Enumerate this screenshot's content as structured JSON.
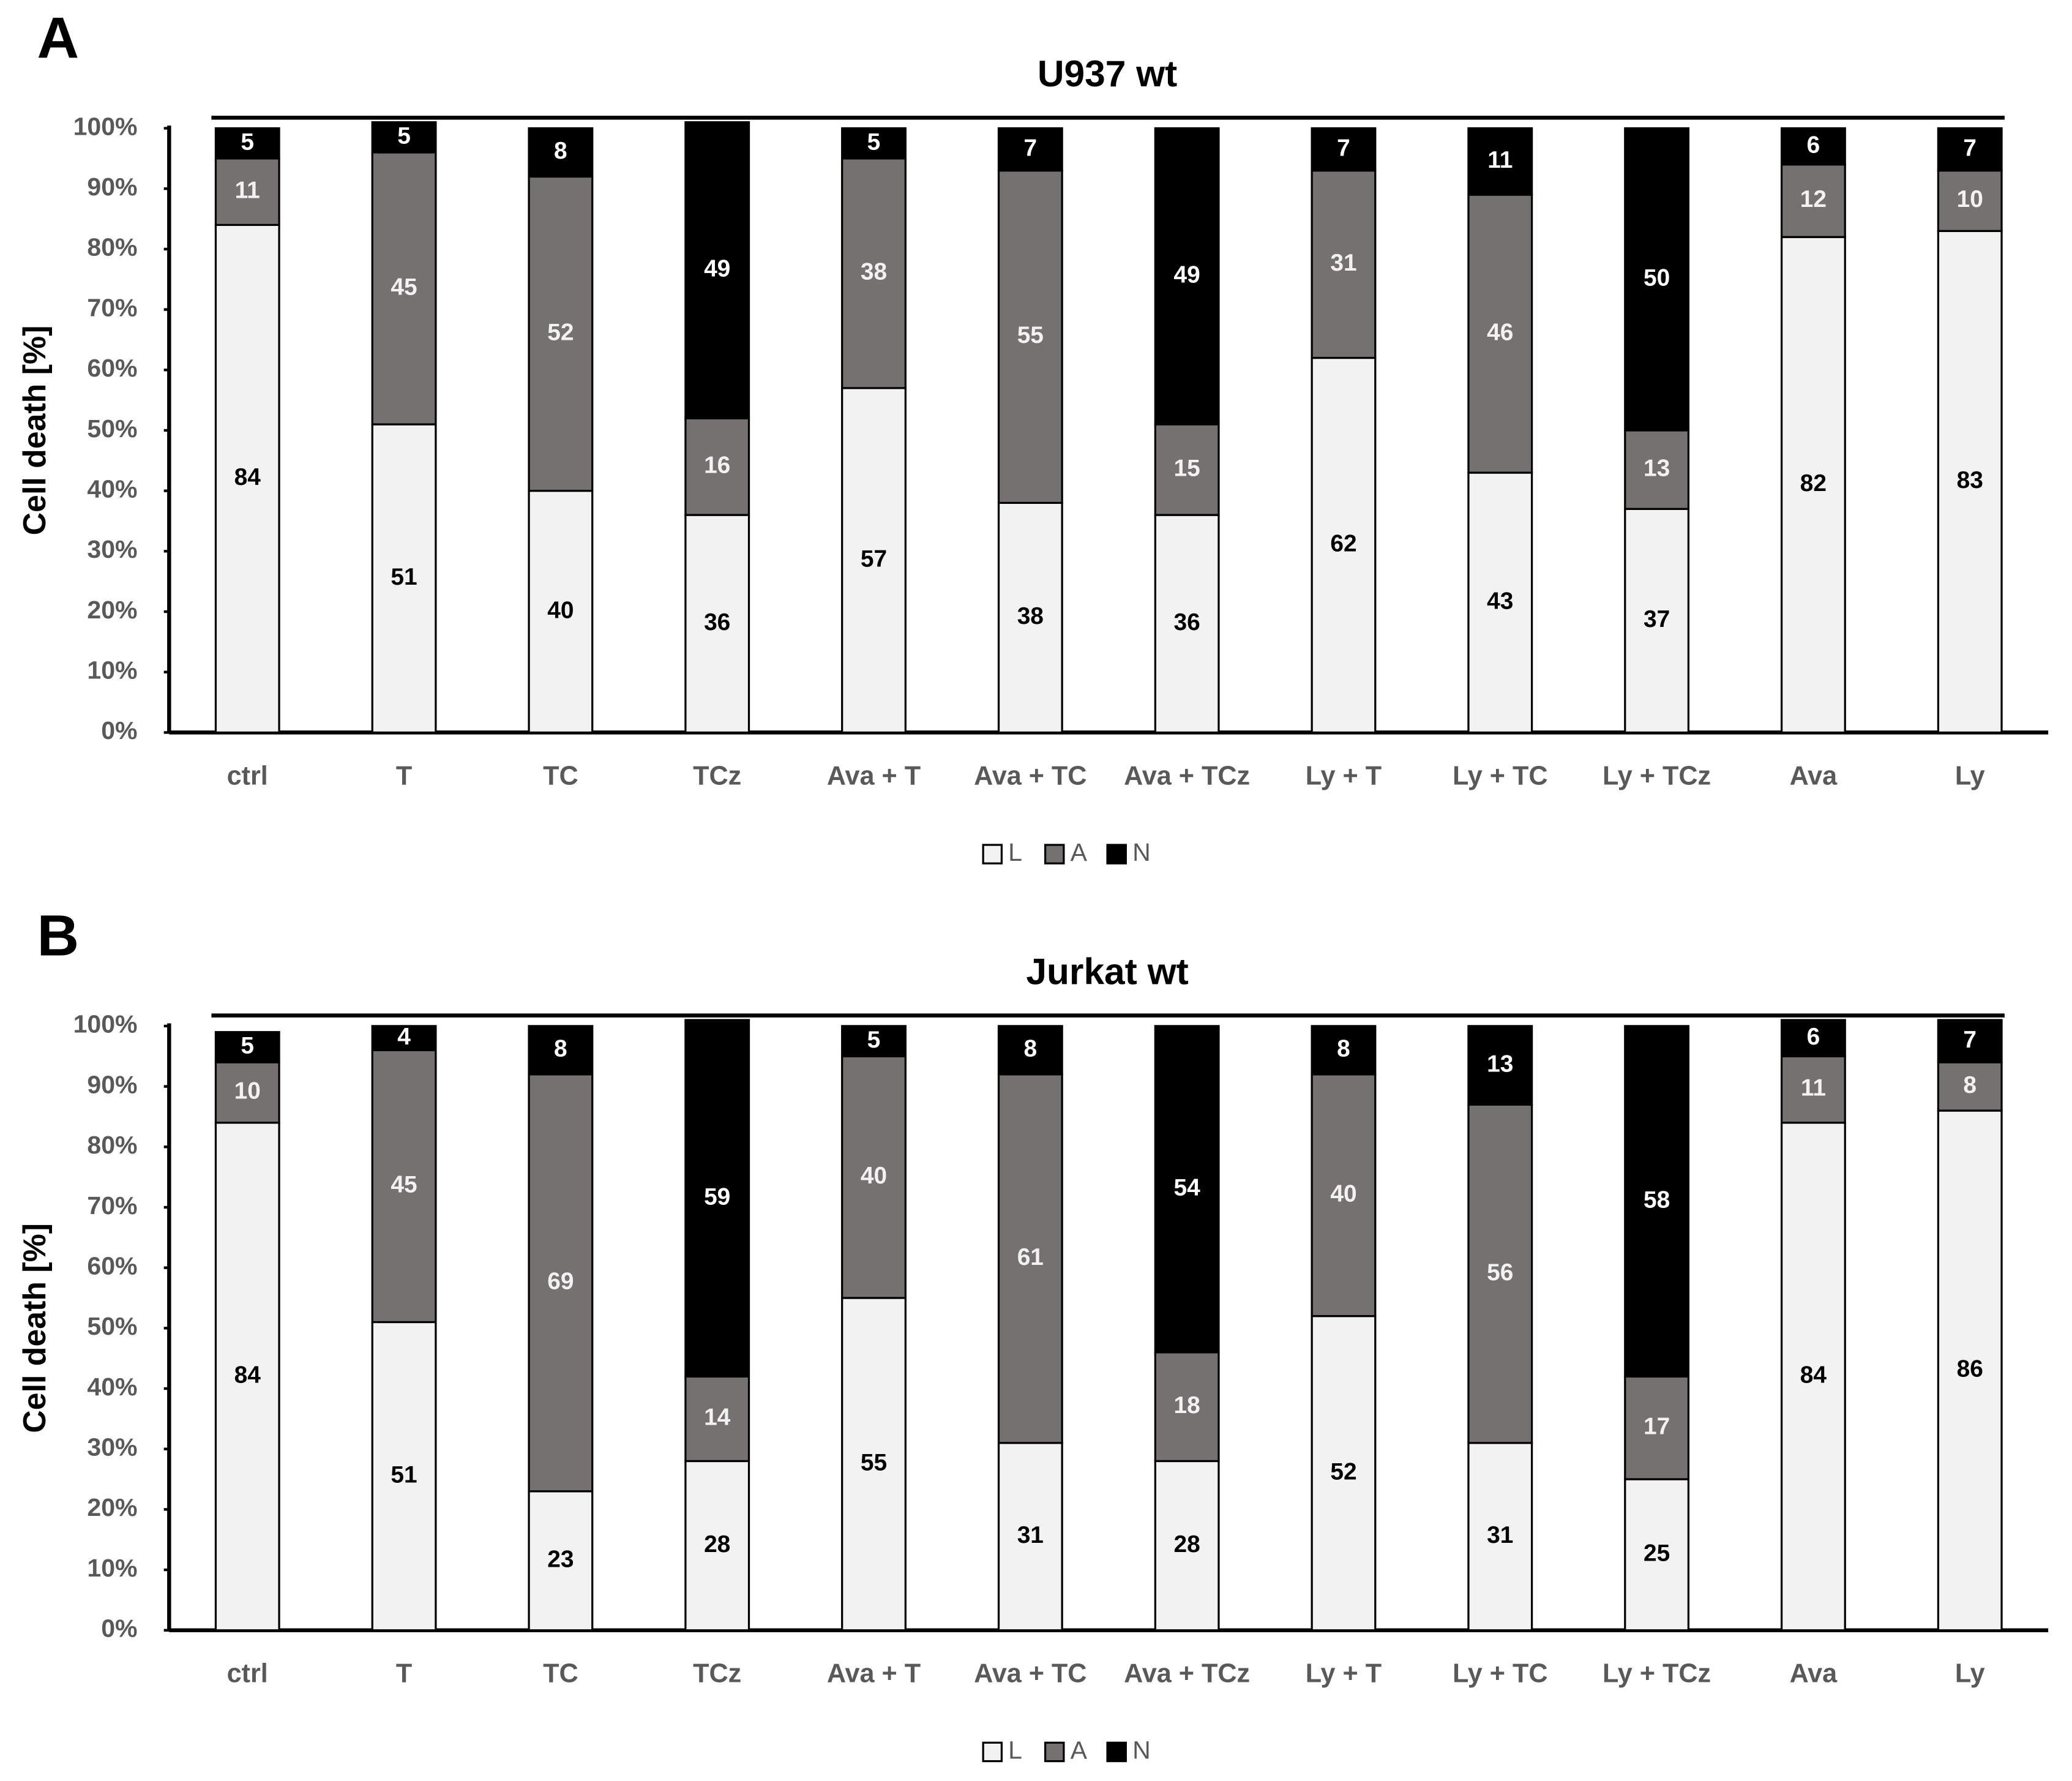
{
  "chart_data": [
    {
      "type": "bar",
      "stacked": true,
      "panel": "A",
      "title": "U937 wt",
      "ylabel": "Cell death [%]",
      "categories": [
        "ctrl",
        "T",
        "TC",
        "TCz",
        "Ava + T",
        "Ava + TC",
        "Ava + TCz",
        "Ly + T",
        "Ly + TC",
        "Ly + TCz",
        "Ava",
        "Ly"
      ],
      "series": [
        {
          "name": "L",
          "color": "#f2f2f2",
          "values": [
            84,
            51,
            40,
            36,
            57,
            38,
            36,
            62,
            43,
            37,
            82,
            83
          ]
        },
        {
          "name": "A",
          "color": "#767171",
          "values": [
            11,
            45,
            52,
            16,
            38,
            55,
            15,
            31,
            46,
            13,
            12,
            10
          ]
        },
        {
          "name": "N",
          "color": "#000000",
          "values": [
            5,
            5,
            8,
            49,
            5,
            7,
            49,
            7,
            11,
            50,
            6,
            7
          ]
        }
      ],
      "ylim": [
        0,
        100
      ],
      "yticks": [
        {
          "value": 0,
          "label": "0%"
        },
        {
          "value": 10,
          "label": "10%"
        },
        {
          "value": 20,
          "label": "20%"
        },
        {
          "value": 30,
          "label": "30%"
        },
        {
          "value": 40,
          "label": "40%"
        },
        {
          "value": 50,
          "label": "50%"
        },
        {
          "value": 60,
          "label": "60%"
        },
        {
          "value": 70,
          "label": "70%"
        },
        {
          "value": 80,
          "label": "80%"
        },
        {
          "value": 90,
          "label": "90%"
        },
        {
          "value": 100,
          "label": "100%"
        }
      ],
      "legend": "bottom"
    },
    {
      "type": "bar",
      "stacked": true,
      "panel": "B",
      "title": "Jurkat wt",
      "ylabel": "Cell death [%]",
      "categories": [
        "ctrl",
        "T",
        "TC",
        "TCz",
        "Ava + T",
        "Ava + TC",
        "Ava + TCz",
        "Ly + T",
        "Ly + TC",
        "Ly + TCz",
        "Ava",
        "Ly"
      ],
      "series": [
        {
          "name": "L",
          "color": "#f2f2f2",
          "values": [
            84,
            51,
            23,
            28,
            55,
            31,
            28,
            52,
            31,
            25,
            84,
            86
          ]
        },
        {
          "name": "A",
          "color": "#767171",
          "values": [
            10,
            45,
            69,
            14,
            40,
            61,
            18,
            40,
            56,
            17,
            11,
            8
          ]
        },
        {
          "name": "N",
          "color": "#000000",
          "values": [
            5,
            4,
            8,
            59,
            5,
            8,
            54,
            8,
            13,
            58,
            6,
            7
          ]
        }
      ],
      "ylim": [
        0,
        100
      ],
      "yticks": [
        {
          "value": 0,
          "label": "0%"
        },
        {
          "value": 10,
          "label": "10%"
        },
        {
          "value": 20,
          "label": "20%"
        },
        {
          "value": 30,
          "label": "30%"
        },
        {
          "value": 40,
          "label": "40%"
        },
        {
          "value": 50,
          "label": "50%"
        },
        {
          "value": 60,
          "label": "60%"
        },
        {
          "value": 70,
          "label": "70%"
        },
        {
          "value": 80,
          "label": "80%"
        },
        {
          "value": 90,
          "label": "90%"
        },
        {
          "value": 100,
          "label": "100%"
        }
      ],
      "legend": "bottom"
    }
  ]
}
